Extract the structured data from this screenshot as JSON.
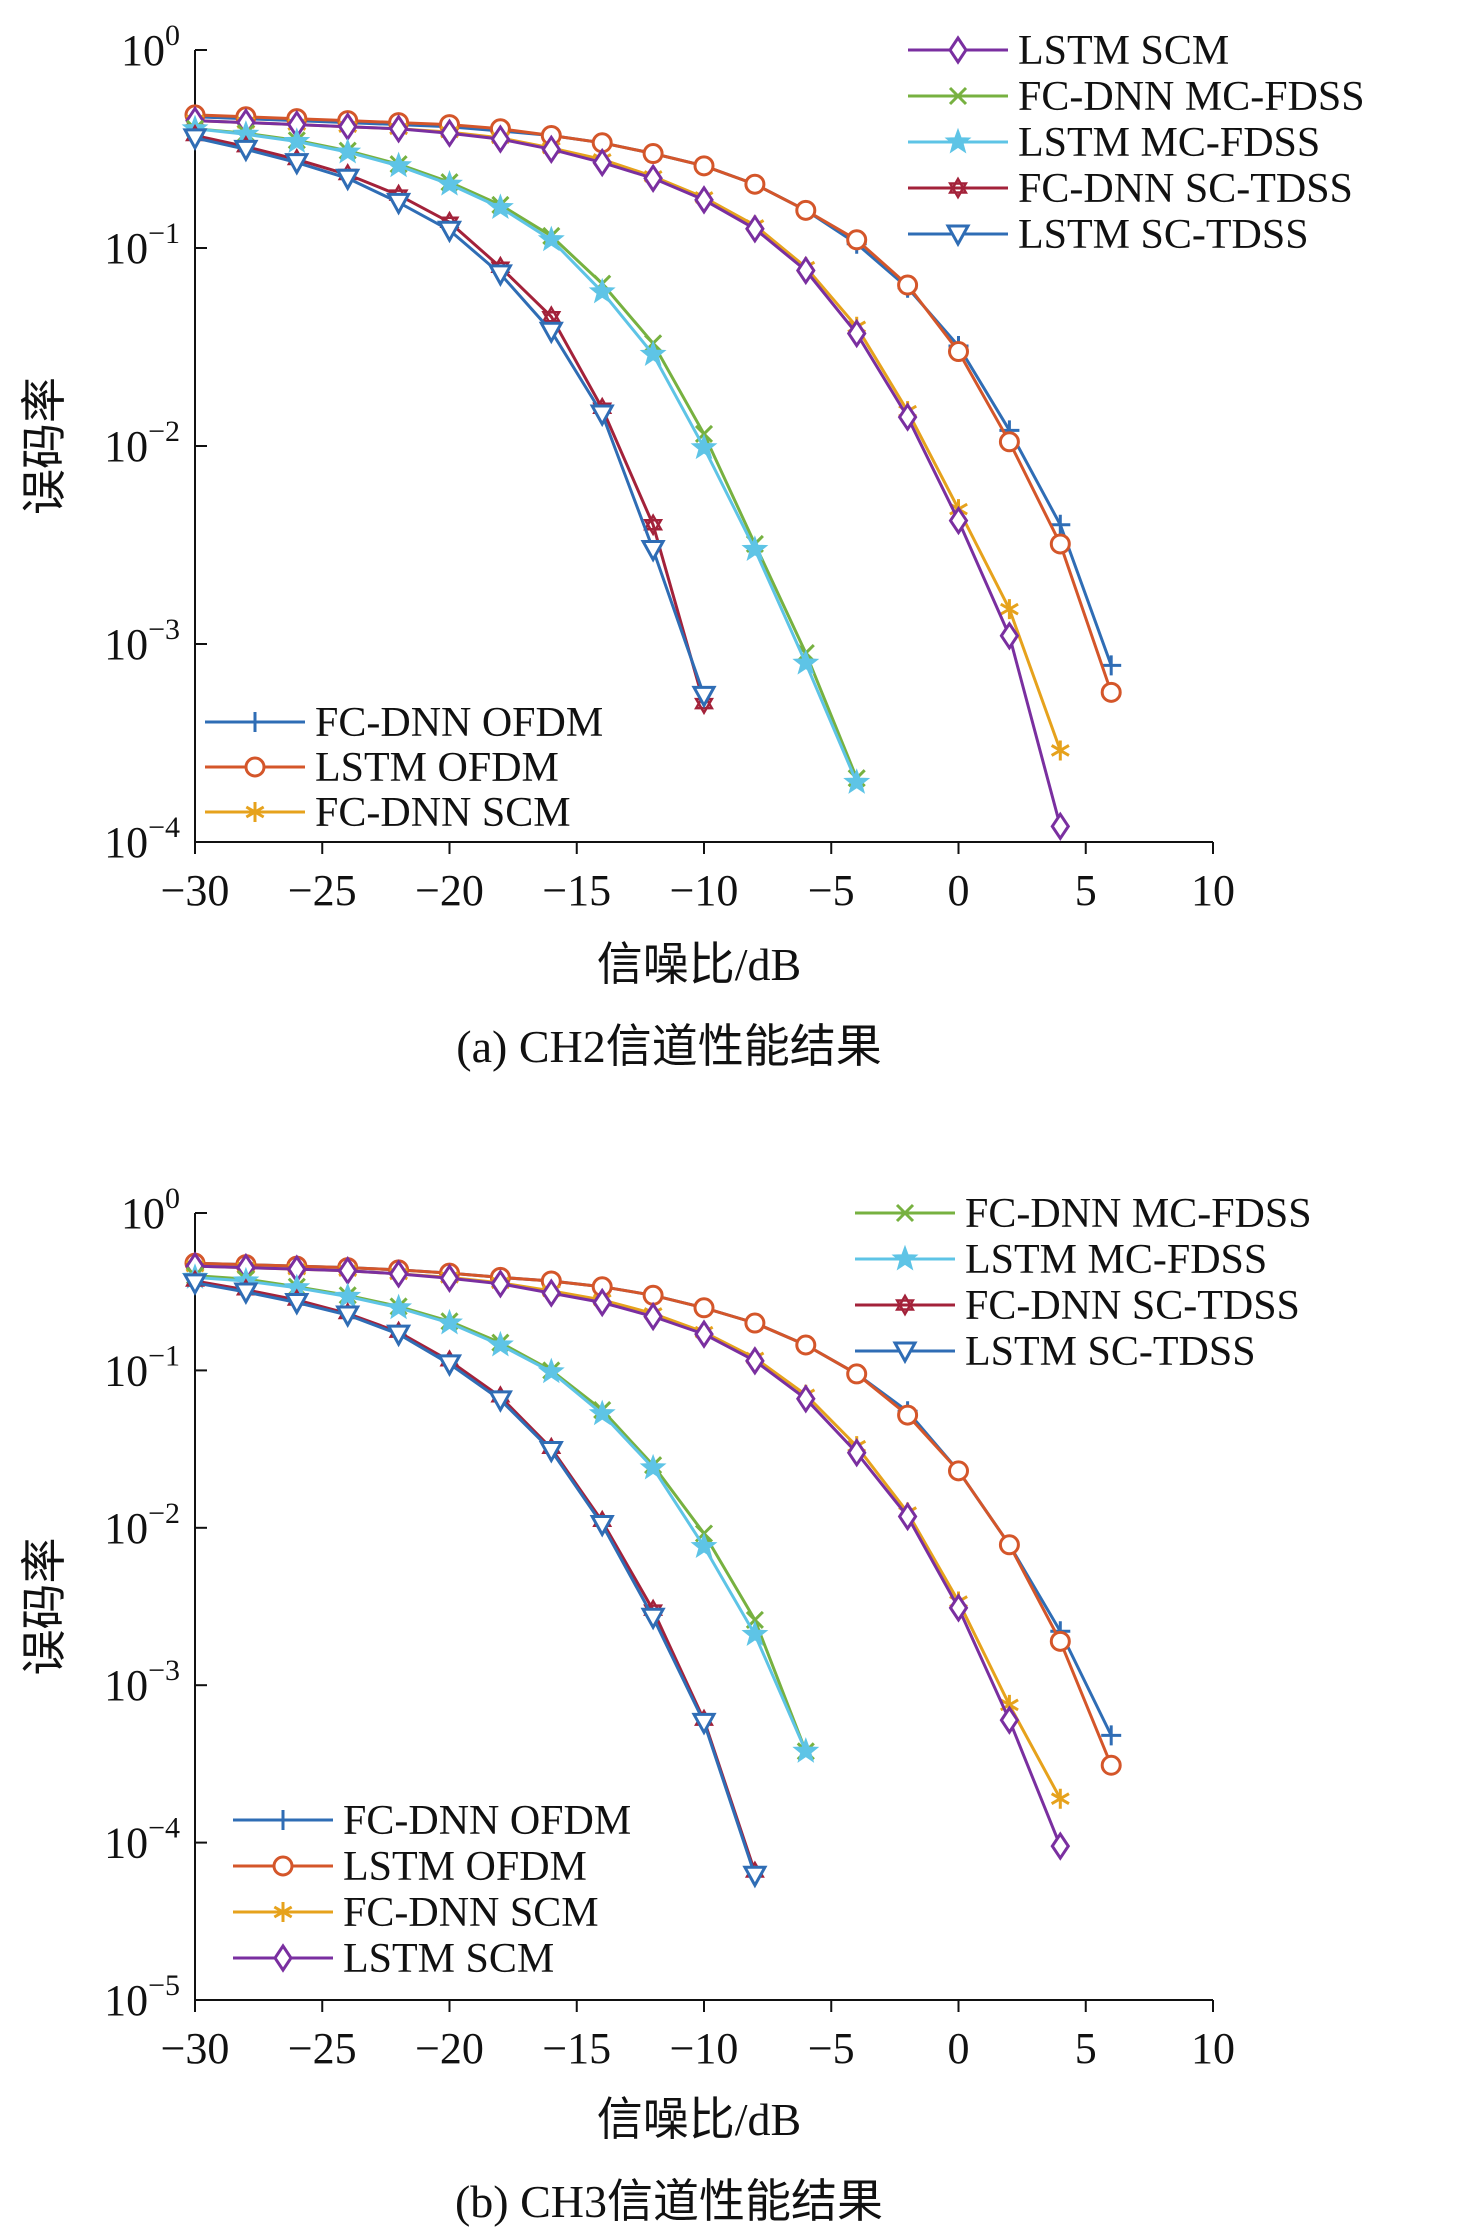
{
  "colors": {
    "FC-DNN OFDM": "#2f6db5",
    "LSTM OFDM": "#d4562a",
    "FC-DNN SCM": "#e6a21c",
    "LSTM SCM": "#7a2fa0",
    "FC-DNN MC-FDSS": "#77b140",
    "LSTM MC-FDSS": "#5ec4e6",
    "FC-DNN SC-TDSS": "#a3223a",
    "LSTM SC-TDSS": "#2f6db5"
  },
  "markers": {
    "FC-DNN OFDM": "plus",
    "LSTM OFDM": "circle",
    "FC-DNN SCM": "asterisk",
    "LSTM SCM": "diamond",
    "FC-DNN MC-FDSS": "x",
    "LSTM MC-FDSS": "star",
    "FC-DNN SC-TDSS": "hexagram",
    "LSTM SC-TDSS": "triangle-down"
  },
  "chart_data": [
    {
      "type": "line",
      "caption": "(a) CH2信道性能结果",
      "xlabel": "信噪比/dB",
      "ylabel": "误码率",
      "xlim": [
        -30,
        10
      ],
      "xticks": [
        -30,
        -25,
        -20,
        -15,
        -10,
        -5,
        0,
        5,
        10
      ],
      "xtick_labels": [
        "−30",
        "−25",
        "−20",
        "−15",
        "−10",
        "−5",
        "0",
        "5",
        "10"
      ],
      "ylim_exp": [
        -4,
        0
      ],
      "yscale": "log",
      "yticks": [
        {
          "base": "10",
          "exp": "0"
        },
        {
          "base": "10",
          "exp": "−1"
        },
        {
          "base": "10",
          "exp": "−2"
        },
        {
          "base": "10",
          "exp": "−3"
        },
        {
          "base": "10",
          "exp": "−4"
        }
      ],
      "legend_top": [
        "LSTM SCM",
        "FC-DNN MC-FDSS",
        "LSTM MC-FDSS",
        "FC-DNN SC-TDSS",
        "LSTM SC-TDSS"
      ],
      "legend_bottom": [
        "FC-DNN OFDM",
        "LSTM OFDM",
        "FC-DNN SCM"
      ],
      "series": [
        {
          "name": "FC-DNN OFDM",
          "x": [
            -30,
            -28,
            -26,
            -24,
            -22,
            -20,
            -18,
            -16,
            -14,
            -12,
            -10,
            -8,
            -6,
            -4,
            -2,
            0,
            2,
            4,
            6
          ],
          "y": [
            0.46,
            0.45,
            0.44,
            0.43,
            0.42,
            0.41,
            0.39,
            0.37,
            0.34,
            0.3,
            0.26,
            0.21,
            0.155,
            0.105,
            0.063,
            0.032,
            0.012,
            0.004,
            0.00078
          ]
        },
        {
          "name": "LSTM OFDM",
          "x": [
            -30,
            -28,
            -26,
            -24,
            -22,
            -20,
            -18,
            -16,
            -14,
            -12,
            -10,
            -8,
            -6,
            -4,
            -2,
            0,
            2,
            4,
            6
          ],
          "y": [
            0.47,
            0.46,
            0.45,
            0.44,
            0.43,
            0.42,
            0.4,
            0.37,
            0.34,
            0.3,
            0.26,
            0.21,
            0.155,
            0.11,
            0.065,
            0.03,
            0.0105,
            0.0032,
            0.00057
          ]
        },
        {
          "name": "FC-DNN SCM",
          "x": [
            -30,
            -28,
            -26,
            -24,
            -22,
            -20,
            -18,
            -16,
            -14,
            -12,
            -10,
            -8,
            -6,
            -4,
            -2,
            0,
            2,
            4
          ],
          "y": [
            0.44,
            0.43,
            0.42,
            0.41,
            0.4,
            0.385,
            0.36,
            0.32,
            0.28,
            0.23,
            0.18,
            0.13,
            0.08,
            0.04,
            0.015,
            0.0048,
            0.0015,
            0.00029
          ]
        },
        {
          "name": "LSTM SCM",
          "x": [
            -30,
            -28,
            -26,
            -24,
            -22,
            -20,
            -18,
            -16,
            -14,
            -12,
            -10,
            -8,
            -6,
            -4,
            -2,
            0,
            2,
            4
          ],
          "y": [
            0.44,
            0.43,
            0.42,
            0.41,
            0.4,
            0.38,
            0.355,
            0.315,
            0.27,
            0.225,
            0.175,
            0.125,
            0.077,
            0.037,
            0.014,
            0.0042,
            0.0011,
            0.00012
          ]
        },
        {
          "name": "FC-DNN MC-FDSS",
          "x": [
            -30,
            -28,
            -26,
            -24,
            -22,
            -20,
            -18,
            -16,
            -14,
            -12,
            -10,
            -8,
            -6,
            -4
          ],
          "y": [
            0.4,
            0.38,
            0.35,
            0.31,
            0.265,
            0.215,
            0.165,
            0.115,
            0.066,
            0.033,
            0.0115,
            0.0032,
            0.0009,
            0.00021
          ]
        },
        {
          "name": "LSTM MC-FDSS",
          "x": [
            -30,
            -28,
            -26,
            -24,
            -22,
            -20,
            -18,
            -16,
            -14,
            -12,
            -10,
            -8,
            -6,
            -4
          ],
          "y": [
            0.4,
            0.375,
            0.345,
            0.305,
            0.26,
            0.21,
            0.16,
            0.11,
            0.06,
            0.029,
            0.0098,
            0.003,
            0.0008,
            0.0002
          ]
        },
        {
          "name": "FC-DNN SC-TDSS",
          "x": [
            -30,
            -28,
            -26,
            -24,
            -22,
            -20,
            -18,
            -16,
            -14,
            -12,
            -10
          ],
          "y": [
            0.37,
            0.325,
            0.28,
            0.235,
            0.185,
            0.135,
            0.08,
            0.045,
            0.0155,
            0.004,
            0.0005
          ]
        },
        {
          "name": "LSTM SC-TDSS",
          "x": [
            -30,
            -28,
            -26,
            -24,
            -22,
            -20,
            -18,
            -16,
            -14,
            -12,
            -10
          ],
          "y": [
            0.36,
            0.315,
            0.27,
            0.225,
            0.17,
            0.123,
            0.074,
            0.038,
            0.0145,
            0.003,
            0.00055
          ]
        }
      ]
    },
    {
      "type": "line",
      "caption": "(b) CH3信道性能结果",
      "xlabel": "信噪比/dB",
      "ylabel": "误码率",
      "xlim": [
        -30,
        10
      ],
      "xticks": [
        -30,
        -25,
        -20,
        -15,
        -10,
        -5,
        0,
        5,
        10
      ],
      "xtick_labels": [
        "−30",
        "−25",
        "−20",
        "−15",
        "−10",
        "−5",
        "0",
        "5",
        "10"
      ],
      "ylim_exp": [
        -5,
        0
      ],
      "yscale": "log",
      "yticks": [
        {
          "base": "10",
          "exp": "0"
        },
        {
          "base": "10",
          "exp": "−1"
        },
        {
          "base": "10",
          "exp": "−2"
        },
        {
          "base": "10",
          "exp": "−3"
        },
        {
          "base": "10",
          "exp": "−4"
        },
        {
          "base": "10",
          "exp": "−5"
        }
      ],
      "legend_top": [
        "FC-DNN MC-FDSS",
        "LSTM MC-FDSS",
        "FC-DNN SC-TDSS",
        "LSTM SC-TDSS"
      ],
      "legend_bottom": [
        "FC-DNN OFDM",
        "LSTM OFDM",
        "FC-DNN SCM",
        "LSTM SCM"
      ],
      "series": [
        {
          "name": "FC-DNN OFDM",
          "x": [
            -30,
            -28,
            -26,
            -24,
            -22,
            -20,
            -18,
            -16,
            -14,
            -12,
            -10,
            -8,
            -6,
            -4,
            -2,
            0,
            2,
            4,
            6
          ],
          "y": [
            0.48,
            0.47,
            0.46,
            0.45,
            0.435,
            0.415,
            0.39,
            0.37,
            0.34,
            0.3,
            0.25,
            0.2,
            0.145,
            0.095,
            0.055,
            0.023,
            0.0078,
            0.0022,
            0.00048
          ]
        },
        {
          "name": "LSTM OFDM",
          "x": [
            -30,
            -28,
            -26,
            -24,
            -22,
            -20,
            -18,
            -16,
            -14,
            -12,
            -10,
            -8,
            -6,
            -4,
            -2,
            0,
            2,
            4,
            6
          ],
          "y": [
            0.48,
            0.47,
            0.46,
            0.45,
            0.435,
            0.415,
            0.39,
            0.37,
            0.34,
            0.3,
            0.25,
            0.2,
            0.145,
            0.095,
            0.052,
            0.023,
            0.0078,
            0.0019,
            0.00031
          ]
        },
        {
          "name": "FC-DNN SCM",
          "x": [
            -30,
            -28,
            -26,
            -24,
            -22,
            -20,
            -18,
            -16,
            -14,
            -12,
            -10,
            -8,
            -6,
            -4,
            -2,
            0,
            2,
            4
          ],
          "y": [
            0.46,
            0.45,
            0.44,
            0.43,
            0.41,
            0.39,
            0.36,
            0.32,
            0.28,
            0.23,
            0.175,
            0.12,
            0.07,
            0.033,
            0.0125,
            0.0034,
            0.00075,
            0.00019
          ]
        },
        {
          "name": "LSTM SCM",
          "x": [
            -30,
            -28,
            -26,
            -24,
            -22,
            -20,
            -18,
            -16,
            -14,
            -12,
            -10,
            -8,
            -6,
            -4,
            -2,
            0,
            2,
            4
          ],
          "y": [
            0.46,
            0.45,
            0.44,
            0.43,
            0.41,
            0.385,
            0.355,
            0.31,
            0.27,
            0.22,
            0.17,
            0.115,
            0.066,
            0.03,
            0.0118,
            0.0031,
            0.0006,
            9.5e-05
          ]
        },
        {
          "name": "FC-DNN MC-FDSS",
          "x": [
            -30,
            -28,
            -26,
            -24,
            -22,
            -20,
            -18,
            -16,
            -14,
            -12,
            -10,
            -8,
            -6
          ],
          "y": [
            0.4,
            0.38,
            0.34,
            0.3,
            0.255,
            0.205,
            0.15,
            0.1,
            0.056,
            0.025,
            0.0092,
            0.0026,
            0.00038
          ]
        },
        {
          "name": "LSTM MC-FDSS",
          "x": [
            -30,
            -28,
            -26,
            -24,
            -22,
            -20,
            -18,
            -16,
            -14,
            -12,
            -10,
            -8,
            -6
          ],
          "y": [
            0.39,
            0.37,
            0.335,
            0.295,
            0.25,
            0.2,
            0.145,
            0.098,
            0.053,
            0.024,
            0.0076,
            0.0021,
            0.00038
          ]
        },
        {
          "name": "FC-DNN SC-TDSS",
          "x": [
            -30,
            -28,
            -26,
            -24,
            -22,
            -20,
            -18,
            -16,
            -14,
            -12,
            -10,
            -8
          ],
          "y": [
            0.37,
            0.325,
            0.28,
            0.23,
            0.175,
            0.115,
            0.068,
            0.032,
            0.011,
            0.003,
            0.0006,
            6.5e-05
          ]
        },
        {
          "name": "LSTM SC-TDSS",
          "x": [
            -30,
            -28,
            -26,
            -24,
            -22,
            -20,
            -18,
            -16,
            -14,
            -12,
            -10,
            -8
          ],
          "y": [
            0.36,
            0.315,
            0.27,
            0.225,
            0.17,
            0.11,
            0.065,
            0.031,
            0.0105,
            0.0027,
            0.00058,
            6.2e-05
          ]
        }
      ]
    }
  ]
}
